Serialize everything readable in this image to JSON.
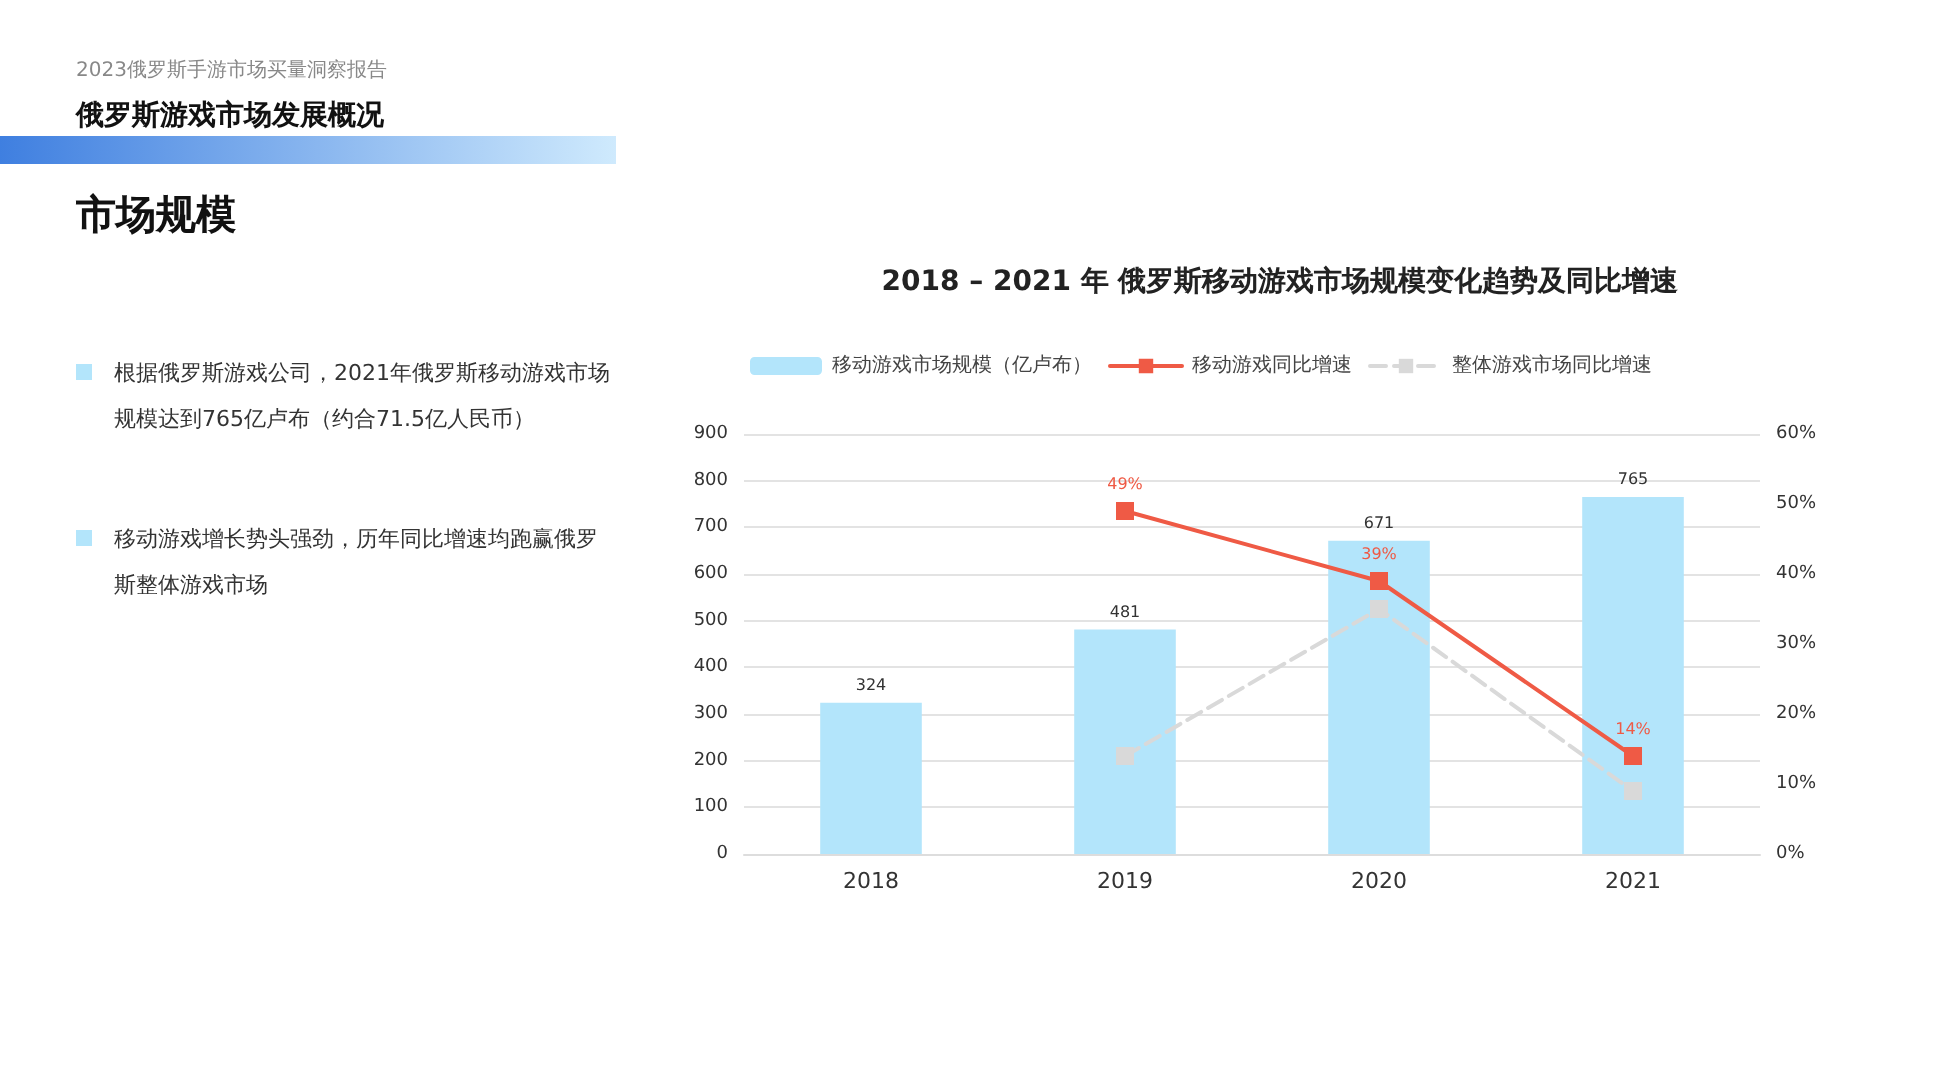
{
  "chart_data": {
    "type": "bar",
    "title": "2018 – 2021 年 俄罗斯移动游戏市场规模变化趋势及同比增速",
    "categories": [
      "2018",
      "2019",
      "2020",
      "2021"
    ],
    "series": [
      {
        "name": "移动游戏市场规模（亿卢布）",
        "color": "#b3e5fb",
        "values": [
          324,
          481,
          671,
          765
        ],
        "data_labels": true
      },
      {
        "name": "移动游戏同比增速",
        "type": "line",
        "axis": "y2",
        "color": "#ef5a45",
        "values": [
          null,
          49,
          39,
          14
        ],
        "value_labels": [
          null,
          "49%",
          "39%",
          "14%"
        ],
        "line_style": "solid"
      },
      {
        "name": "整体游戏市场同比增速",
        "type": "line",
        "axis": "y2",
        "color": "#d9d9d9",
        "values": [
          null,
          14,
          35,
          9
        ],
        "line_style": "dashed"
      }
    ],
    "ylim": [
      0,
      900
    ],
    "yticks": [
      0,
      100,
      200,
      300,
      400,
      500,
      600,
      700,
      800,
      900
    ],
    "y2lim": [
      0,
      60
    ],
    "y2ticks": [
      {
        "value": 0,
        "label": "0%"
      },
      {
        "value": 10,
        "label": "10%"
      },
      {
        "value": 20,
        "label": "20%"
      },
      {
        "value": 30,
        "label": "30%"
      },
      {
        "value": 40,
        "label": "40%"
      },
      {
        "value": 50,
        "label": "50%"
      },
      {
        "value": 60,
        "label": "60%"
      }
    ],
    "grid": "y",
    "legend": "top",
    "marker": "square",
    "annotations": [
      "2023俄罗斯手游市场买量洞察报告",
      "俄罗斯游戏市场发展概况",
      "市场规模",
      "根据俄罗斯游戏公司，2021年俄罗斯移动游戏市场规模达到765亿卢布（约合71.5亿人民币）",
      "移动游戏增长势头强劲，历年同比增速均跑赢俄罗斯整体游戏市场"
    ]
  }
}
